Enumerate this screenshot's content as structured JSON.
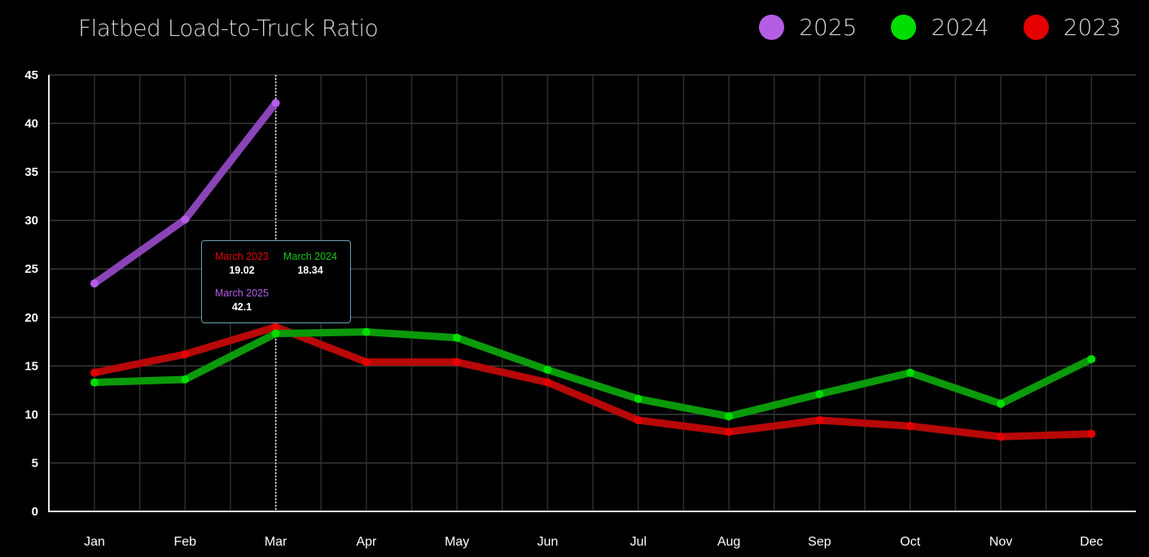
{
  "chart_data": {
    "type": "line",
    "title": "Flatbed Load-to-Truck Ratio",
    "categories": [
      "Jan",
      "Feb",
      "Mar",
      "Apr",
      "May",
      "Jun",
      "Jul",
      "Aug",
      "Sep",
      "Oct",
      "Nov",
      "Dec"
    ],
    "ylim": [
      0,
      45
    ],
    "yticks": [
      0,
      5,
      10,
      15,
      20,
      25,
      30,
      35,
      40,
      45
    ],
    "grid": true,
    "legend_position": "top-right",
    "series": [
      {
        "name": "2025",
        "color": "#b45ee6",
        "line_color": "#8a44b8",
        "values": [
          23.5,
          30.1,
          42.1,
          null,
          null,
          null,
          null,
          null,
          null,
          null,
          null,
          null
        ]
      },
      {
        "name": "2024",
        "color": "#00dd00",
        "line_color": "#0a9a0a",
        "values": [
          13.3,
          13.6,
          18.34,
          18.5,
          17.9,
          14.6,
          11.6,
          9.8,
          12.1,
          14.3,
          11.1,
          15.7
        ]
      },
      {
        "name": "2023",
        "color": "#e60000",
        "line_color": "#b80808",
        "values": [
          14.3,
          16.2,
          19.02,
          15.4,
          15.4,
          13.3,
          9.4,
          8.2,
          9.4,
          8.8,
          7.7,
          8.0
        ]
      }
    ],
    "tooltip": {
      "category_index": 2,
      "entries": [
        {
          "label": "March 2023",
          "value": "19.02",
          "color": "#e60000"
        },
        {
          "label": "March 2024",
          "value": "18.34",
          "color": "#18c818"
        },
        {
          "label": "March 2025",
          "value": "42.1",
          "color": "#b45ee6"
        }
      ]
    }
  }
}
